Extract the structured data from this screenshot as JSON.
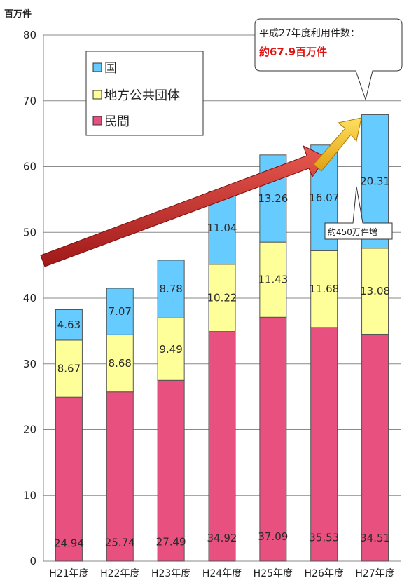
{
  "chart_data": {
    "type": "bar",
    "stacked": true,
    "unit_label": "百万件",
    "categories": [
      "H21年度",
      "H22年度",
      "H23年度",
      "H24年度",
      "H25年度",
      "H26年度",
      "H27年度"
    ],
    "series": [
      {
        "name": "民間",
        "color": "#e8507f",
        "values": [
          24.94,
          25.74,
          27.49,
          34.92,
          37.09,
          35.53,
          34.51
        ]
      },
      {
        "name": "地方公共団体",
        "color": "#ffff99",
        "values": [
          8.67,
          8.68,
          9.49,
          10.22,
          11.43,
          11.68,
          13.08
        ]
      },
      {
        "name": "国",
        "color": "#66ccff",
        "values": [
          4.63,
          7.07,
          8.78,
          11.04,
          13.26,
          16.07,
          20.31
        ]
      }
    ],
    "ylim": [
      0,
      80
    ],
    "yticks": [
      0,
      10,
      20,
      30,
      40,
      50,
      60,
      70,
      80
    ],
    "legend": [
      "国",
      "地方公共団体",
      "民間"
    ],
    "legend_position": "top-left",
    "grid": true,
    "annotations": {
      "callout_line1": "平成27年度利用件数：",
      "callout_line2": "約67.9百万件",
      "increase_note": "約450万件増"
    }
  }
}
